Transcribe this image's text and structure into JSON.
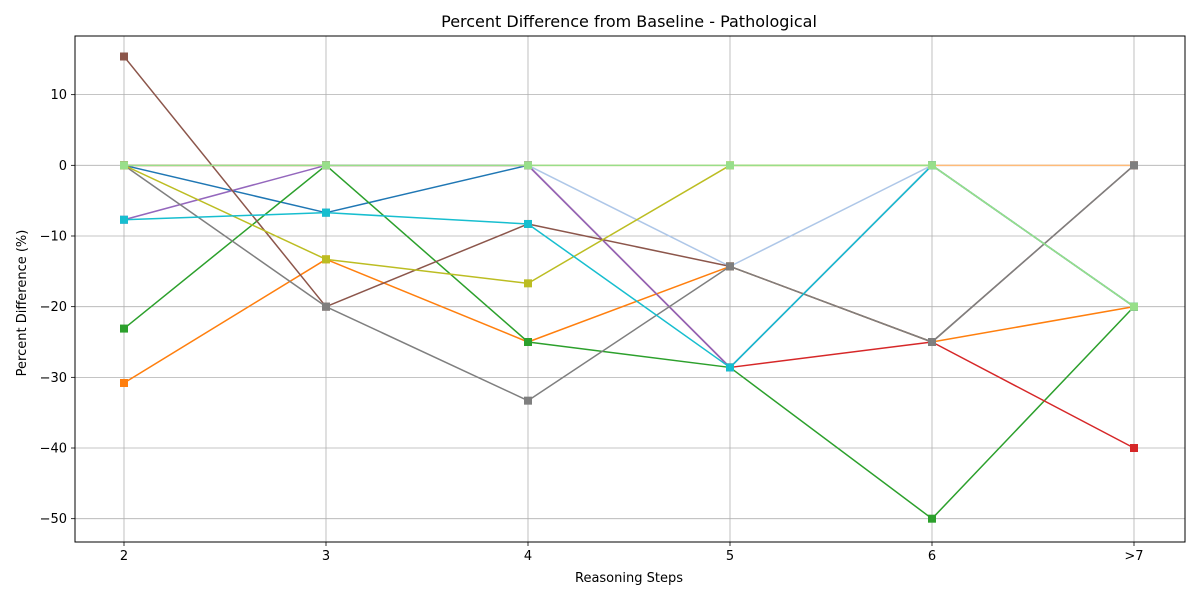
{
  "chart_data": {
    "type": "line",
    "title": "Percent Difference from Baseline - Pathological",
    "xlabel": "Reasoning Steps",
    "ylabel": "Percent Difference (%)",
    "categories": [
      "2",
      "3",
      "4",
      "5",
      "6",
      ">7"
    ],
    "ylim": [
      -53.3,
      18.3
    ],
    "yticks": [
      10,
      0,
      -10,
      -20,
      -30,
      -40,
      -50
    ],
    "ytick_labels": [
      "10",
      "0",
      "−10",
      "−20",
      "−30",
      "−40",
      "−50"
    ],
    "grid": true,
    "legend": "none",
    "marker": "square",
    "series": [
      {
        "color": "#1f77b4",
        "values": [
          0,
          -6.7,
          0,
          -28.6,
          0,
          -20
        ]
      },
      {
        "color": "#aec7e8",
        "values": [
          0,
          0,
          0,
          -14.3,
          0,
          0
        ]
      },
      {
        "color": "#ff7f0e",
        "values": [
          -30.8,
          -13.3,
          -25,
          -14.3,
          -25,
          -20
        ]
      },
      {
        "color": "#ffbb78",
        "values": [
          0,
          0,
          0,
          0,
          0,
          0
        ]
      },
      {
        "color": "#2ca02c",
        "values": [
          -23.1,
          0,
          -25,
          -28.6,
          -50,
          -20
        ]
      },
      {
        "color": "#d62728",
        "values": [
          0,
          0,
          0,
          -28.6,
          -25,
          -40
        ]
      },
      {
        "color": "#9467bd",
        "values": [
          -7.7,
          0,
          0,
          -28.6,
          0,
          -20
        ]
      },
      {
        "color": "#8c564b",
        "values": [
          15.4,
          -20,
          -8.3,
          -14.3,
          -25,
          0
        ]
      },
      {
        "color": "#7f7f7f",
        "values": [
          0,
          -20,
          -33.3,
          -14.3,
          -25,
          0
        ]
      },
      {
        "color": "#bcbd22",
        "values": [
          0,
          -13.3,
          -16.7,
          0,
          0,
          -20
        ]
      },
      {
        "color": "#17becf",
        "values": [
          -7.7,
          -6.7,
          -8.3,
          -28.6,
          0,
          -20
        ]
      },
      {
        "color": "#98df8a",
        "values": [
          0,
          0,
          0,
          0,
          0,
          -20
        ]
      }
    ]
  }
}
